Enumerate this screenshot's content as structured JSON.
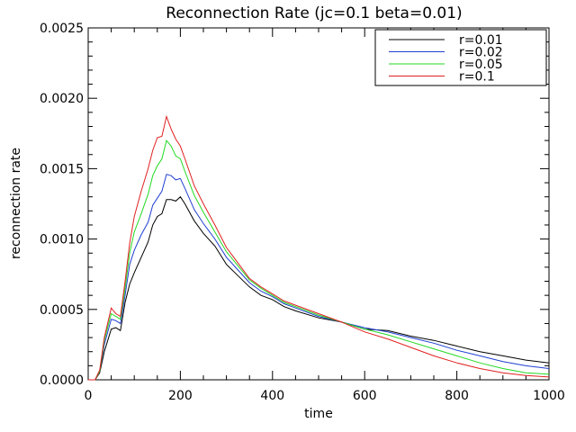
{
  "chart_data": {
    "type": "line",
    "title": "Reconnection Rate (jc=0.1 beta=0.01)",
    "xlabel": "time",
    "ylabel": "reconnection rate",
    "xlim": [
      0,
      1000
    ],
    "ylim": [
      0,
      0.0025
    ],
    "x_ticks": [
      "0",
      "200",
      "400",
      "600",
      "800",
      "1000"
    ],
    "y_ticks": [
      "0.0000",
      "0.0005",
      "0.0010",
      "0.0015",
      "0.0020",
      "0.0025"
    ],
    "grid": false,
    "legend_position": "top-right",
    "series": [
      {
        "name": "r=0.01",
        "color": "#000000",
        "x": [
          0,
          15,
          25,
          35,
          50,
          60,
          70,
          80,
          90,
          100,
          115,
          130,
          140,
          150,
          160,
          170,
          180,
          190,
          200,
          210,
          230,
          250,
          275,
          300,
          325,
          350,
          375,
          400,
          425,
          450,
          500,
          550,
          600,
          650,
          700,
          750,
          800,
          850,
          900,
          950,
          1000
        ],
        "y": [
          0.0,
          0.0,
          5e-05,
          0.0002,
          0.00036,
          0.00037,
          0.00035,
          0.00055,
          0.00068,
          0.00076,
          0.00087,
          0.00098,
          0.0011,
          0.00116,
          0.00118,
          0.00128,
          0.00128,
          0.00127,
          0.0013,
          0.00125,
          0.00113,
          0.00104,
          0.00095,
          0.00082,
          0.00074,
          0.00066,
          0.0006,
          0.00057,
          0.00052,
          0.00049,
          0.00044,
          0.00041,
          0.00036,
          0.00035,
          0.00031,
          0.00028,
          0.00024,
          0.0002,
          0.00017,
          0.00014,
          0.00012
        ]
      },
      {
        "name": "r=0.02",
        "color": "#1f3fd1",
        "x": [
          0,
          15,
          25,
          35,
          50,
          60,
          70,
          80,
          90,
          100,
          115,
          130,
          140,
          150,
          160,
          170,
          180,
          190,
          200,
          210,
          230,
          250,
          275,
          300,
          325,
          350,
          375,
          400,
          425,
          450,
          500,
          550,
          600,
          650,
          700,
          750,
          800,
          850,
          900,
          950,
          1000
        ],
        "y": [
          0.0,
          0.0,
          6e-05,
          0.00025,
          0.00043,
          0.00042,
          0.0004,
          0.0006,
          0.00082,
          0.00092,
          0.00103,
          0.00112,
          0.00124,
          0.00129,
          0.00134,
          0.00146,
          0.00145,
          0.00142,
          0.00143,
          0.00136,
          0.00121,
          0.00111,
          0.001,
          0.00087,
          0.00078,
          0.00069,
          0.00063,
          0.00059,
          0.00054,
          0.00051,
          0.00045,
          0.00041,
          0.00037,
          0.00034,
          0.0003,
          0.00026,
          0.00021,
          0.00017,
          0.00013,
          0.0001,
          8e-05
        ]
      },
      {
        "name": "r=0.05",
        "color": "#23d923",
        "x": [
          0,
          15,
          25,
          35,
          50,
          60,
          70,
          80,
          90,
          100,
          115,
          130,
          140,
          150,
          160,
          170,
          180,
          190,
          200,
          210,
          230,
          250,
          275,
          300,
          325,
          350,
          375,
          400,
          425,
          450,
          500,
          550,
          600,
          650,
          700,
          750,
          800,
          850,
          900,
          950,
          1000
        ],
        "y": [
          0.0,
          0.0,
          6e-05,
          0.00028,
          0.00047,
          0.00045,
          0.00043,
          0.00065,
          0.0009,
          0.00105,
          0.00118,
          0.00132,
          0.00145,
          0.00152,
          0.00157,
          0.0017,
          0.00166,
          0.00159,
          0.00157,
          0.00148,
          0.00131,
          0.00119,
          0.00105,
          0.00091,
          0.00081,
          0.00071,
          0.00065,
          0.0006,
          0.00055,
          0.00052,
          0.00046,
          0.00041,
          0.00036,
          0.00032,
          0.00027,
          0.00022,
          0.00017,
          0.00012,
          8e-05,
          5e-05,
          4e-05
        ]
      },
      {
        "name": "r=0.1",
        "color": "#e02020",
        "x": [
          0,
          15,
          25,
          35,
          50,
          60,
          70,
          80,
          90,
          100,
          115,
          130,
          140,
          150,
          160,
          170,
          180,
          190,
          200,
          210,
          230,
          250,
          275,
          300,
          325,
          350,
          375,
          400,
          425,
          450,
          500,
          550,
          600,
          650,
          700,
          750,
          800,
          850,
          900,
          950,
          1000
        ],
        "y": [
          0.0,
          0.0,
          7e-05,
          0.0003,
          0.00051,
          0.00047,
          0.00045,
          0.0007,
          0.00097,
          0.00116,
          0.00134,
          0.0015,
          0.00163,
          0.00172,
          0.00173,
          0.00187,
          0.00178,
          0.00171,
          0.00166,
          0.00157,
          0.00138,
          0.00125,
          0.0011,
          0.00094,
          0.00083,
          0.00072,
          0.00066,
          0.00061,
          0.00056,
          0.00053,
          0.00047,
          0.00041,
          0.00034,
          0.00029,
          0.00023,
          0.00017,
          0.00012,
          8e-05,
          5e-05,
          3e-05,
          2e-05
        ]
      }
    ]
  }
}
